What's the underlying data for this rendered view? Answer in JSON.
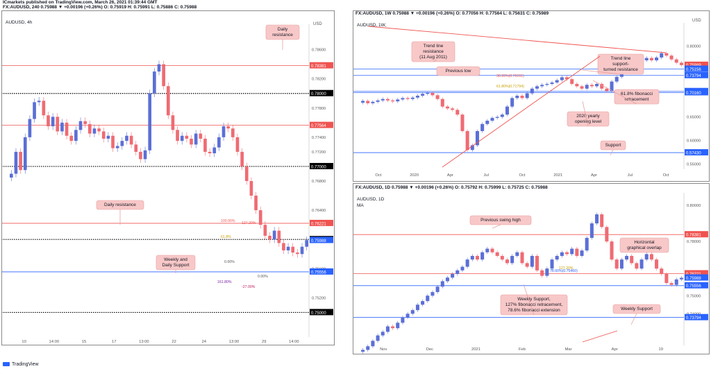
{
  "header": {
    "publisher": "ICmarkets published on TradingView.com, March 26, 2021 01:39:44 GMT",
    "quote": "FX:AUDUSD, 240  0.75988  ▼  +0.00196 (+0.26%)  O: 0.75919  H: 0.75991  L: 0.75886  C: 0.75988"
  },
  "footer": {
    "brand": "TradingView"
  },
  "panes": {
    "h4": {
      "symbol": "AUDUSD, 4h",
      "currency": "USD",
      "x_ticks": [
        "10",
        "14:00",
        "15",
        "17",
        "13:00",
        "22",
        "24",
        "13:00",
        "29",
        "14:00"
      ],
      "y_ticks": [
        "0.78600",
        "0.78200",
        "0.77800",
        "0.77400",
        "0.77200",
        "0.76800",
        "0.76400",
        "0.76000",
        "0.75600",
        "0.75200"
      ],
      "price_badges": [
        {
          "label": "0.78381",
          "color": "#ef5350"
        },
        {
          "label": "0.78000",
          "color": "#000000"
        },
        {
          "label": "0.77564",
          "color": "#ef5350"
        },
        {
          "label": "0.77000",
          "color": "#000000"
        },
        {
          "label": "0.76221",
          "color": "#ef5350"
        },
        {
          "label": "0.76000",
          "color": "#000000"
        },
        {
          "label": "0.75988",
          "color": "#2962ff"
        },
        {
          "label": "0.75556",
          "color": "#2962ff"
        },
        {
          "label": "0.75000",
          "color": "#000000"
        }
      ],
      "annotations": [
        {
          "text": [
            "Daily",
            "resistance"
          ]
        },
        {
          "text": [
            "Daily resistance"
          ]
        },
        {
          "text": [
            "Weekly and",
            "Daily Support"
          ]
        }
      ],
      "fib_labels": [
        "100.00%",
        "127.20%",
        "61.8%",
        "0.00%",
        "0.00%",
        "161.80%",
        "-27.00%"
      ]
    },
    "w1": {
      "quote": "FX:AUDUSD, 1W  0.75988  ▼  +0.00196 (+0.26%)  O: 0.77056  H: 0.77564  L: 0.75631  C: 0.75989",
      "symbol": "AUDUSD, 1W,",
      "currency": "USD",
      "x_ticks": [
        "Oct",
        "2020",
        "Apr",
        "Jul",
        "Oct",
        "2021",
        "Apr",
        "Jul",
        "Oct"
      ],
      "y_ticks": [
        "0.80000",
        "0.75000",
        "0.70000",
        "0.65000",
        "0.60000",
        "0.55000"
      ],
      "price_badges": [
        {
          "label": "0.75989",
          "color": "#ef5350"
        },
        {
          "label": "0.75156",
          "color": "#2962ff"
        },
        {
          "label": "0.73794",
          "color": "#2962ff"
        },
        {
          "label": "0.70420",
          "color": "#2962ff"
        },
        {
          "label": "0.70160",
          "color": "#2962ff"
        },
        {
          "label": "0.57430",
          "color": "#2962ff"
        }
      ],
      "annotations": [
        {
          "text": [
            "Trend line",
            "resistance",
            "(11 Aug 2011)"
          ]
        },
        {
          "text": [
            "Previous low"
          ]
        },
        {
          "text": [
            "Trend line",
            "support-",
            "turned resistance"
          ]
        },
        {
          "text": [
            "61.8% fibonacci",
            "retracement"
          ]
        },
        {
          "text": [
            "2020 yearly",
            "opening level"
          ]
        },
        {
          "text": [
            "Support"
          ]
        }
      ],
      "fib_labels": [
        "38.20%(0.76191)",
        "61.80%(0.71794)"
      ]
    },
    "d1": {
      "quote": "FX:AUDUSD, 1D  0.75988  ▼  +0.00196 (+0.26%)  O: 0.75792  H: 0.75999  L: 0.75725  C: 0.75988",
      "symbol": "AUDUSD, 1D",
      "indicator": "MA",
      "x_ticks": [
        "Nov",
        "Dec",
        "2021",
        "Feb",
        "Mar",
        "Apr",
        "19"
      ],
      "y_ticks": [
        "0.80000",
        "0.78000",
        "0.76000",
        "0.75000",
        "0.74000",
        "0.72000"
      ],
      "price_badges": [
        {
          "label": "0.78381",
          "color": "#ef5350"
        },
        {
          "label": "0.76221",
          "color": "#ef5350"
        },
        {
          "label": "0.75988",
          "color": "#2962ff"
        },
        {
          "label": "0.75556",
          "color": "#2962ff"
        },
        {
          "label": "0.73794",
          "color": "#2962ff"
        }
      ],
      "annotations": [
        {
          "text": [
            "Previous swing high"
          ]
        },
        {
          "text": [
            "Horizontal",
            "graphical overlap"
          ]
        },
        {
          "text": [
            "Weekly Support,",
            "127% fibonacci retracement,",
            "78.6% fibonacci extension"
          ]
        },
        {
          "text": [
            "Weekly Support"
          ]
        }
      ],
      "fib_labels": [
        "127.20%",
        "78.60%(0.75460)"
      ]
    }
  },
  "chart_data": [
    {
      "type": "candlestick",
      "title": "AUDUSD, 4h",
      "ylim": [
        0.747,
        0.789
      ],
      "x": [
        "10",
        "14:00",
        "15",
        "17",
        "13:00",
        "22",
        "24",
        "13:00",
        "29",
        "14:00"
      ],
      "horizontal_levels": [
        0.78381,
        0.78,
        0.77564,
        0.77,
        0.76221,
        0.76,
        0.75556,
        0.75
      ],
      "last_price": 0.75988,
      "close_series": [
        0.769,
        0.772,
        0.7695,
        0.774,
        0.7765,
        0.7788,
        0.779,
        0.777,
        0.7755,
        0.7768,
        0.7748,
        0.776,
        0.7742,
        0.7735,
        0.775,
        0.7762,
        0.7758,
        0.7745,
        0.7752,
        0.7748,
        0.7738,
        0.7742,
        0.7725,
        0.7728,
        0.7735,
        0.7742,
        0.773,
        0.772,
        0.771,
        0.7722,
        0.78,
        0.783,
        0.784,
        0.781,
        0.777,
        0.775,
        0.7735,
        0.7742,
        0.7738,
        0.773,
        0.7745,
        0.7738,
        0.772,
        0.7718,
        0.7726,
        0.774,
        0.7755,
        0.7752,
        0.774,
        0.772,
        0.77,
        0.768,
        0.766,
        0.764,
        0.762,
        0.7605,
        0.76,
        0.7612,
        0.7595,
        0.7585,
        0.759,
        0.7582,
        0.758,
        0.759,
        0.7599
      ]
    },
    {
      "type": "candlestick",
      "title": "AUDUSD, 1W",
      "ylim": [
        0.545,
        0.842
      ],
      "x": [
        "Oct",
        "2020",
        "Apr",
        "Jul",
        "Oct",
        "2021",
        "Apr",
        "Jul",
        "Oct"
      ],
      "horizontal_levels": [
        0.75156,
        0.73794,
        0.7042,
        0.7016,
        0.5743
      ],
      "last_price": 0.75989,
      "close_series": [
        0.684,
        0.679,
        0.682,
        0.685,
        0.688,
        0.685,
        0.683,
        0.687,
        0.69,
        0.688,
        0.691,
        0.695,
        0.699,
        0.701,
        0.696,
        0.688,
        0.672,
        0.668,
        0.665,
        0.655,
        0.62,
        0.58,
        0.59,
        0.62,
        0.635,
        0.642,
        0.648,
        0.65,
        0.655,
        0.672,
        0.69,
        0.695,
        0.69,
        0.7,
        0.71,
        0.715,
        0.718,
        0.72,
        0.723,
        0.728,
        0.734,
        0.73,
        0.72,
        0.715,
        0.71,
        0.718,
        0.715,
        0.72,
        0.71,
        0.705,
        0.725,
        0.735,
        0.745,
        0.75,
        0.76,
        0.768,
        0.77,
        0.775,
        0.77,
        0.776,
        0.785,
        0.78,
        0.772,
        0.765,
        0.7599
      ]
    },
    {
      "type": "candlestick",
      "title": "AUDUSD, 1D",
      "ylim": [
        0.724,
        0.805
      ],
      "x": [
        "Nov",
        "Dec",
        "2021",
        "Feb",
        "Mar",
        "Apr",
        "19"
      ],
      "horizontal_levels": [
        0.78381,
        0.76221,
        0.75556,
        0.73794
      ],
      "last_price": 0.75988,
      "close_series": [
        0.72,
        0.722,
        0.725,
        0.728,
        0.73,
        0.733,
        0.732,
        0.735,
        0.738,
        0.74,
        0.742,
        0.745,
        0.747,
        0.75,
        0.752,
        0.755,
        0.758,
        0.76,
        0.762,
        0.764,
        0.766,
        0.77,
        0.772,
        0.77,
        0.774,
        0.776,
        0.774,
        0.772,
        0.77,
        0.768,
        0.772,
        0.774,
        0.768,
        0.766,
        0.772,
        0.764,
        0.761,
        0.765,
        0.77,
        0.772,
        0.774,
        0.773,
        0.776,
        0.772,
        0.775,
        0.782,
        0.79,
        0.795,
        0.788,
        0.78,
        0.77,
        0.765,
        0.77,
        0.772,
        0.768,
        0.765,
        0.77,
        0.773,
        0.77,
        0.765,
        0.762,
        0.757,
        0.756,
        0.759,
        0.7599
      ]
    }
  ]
}
